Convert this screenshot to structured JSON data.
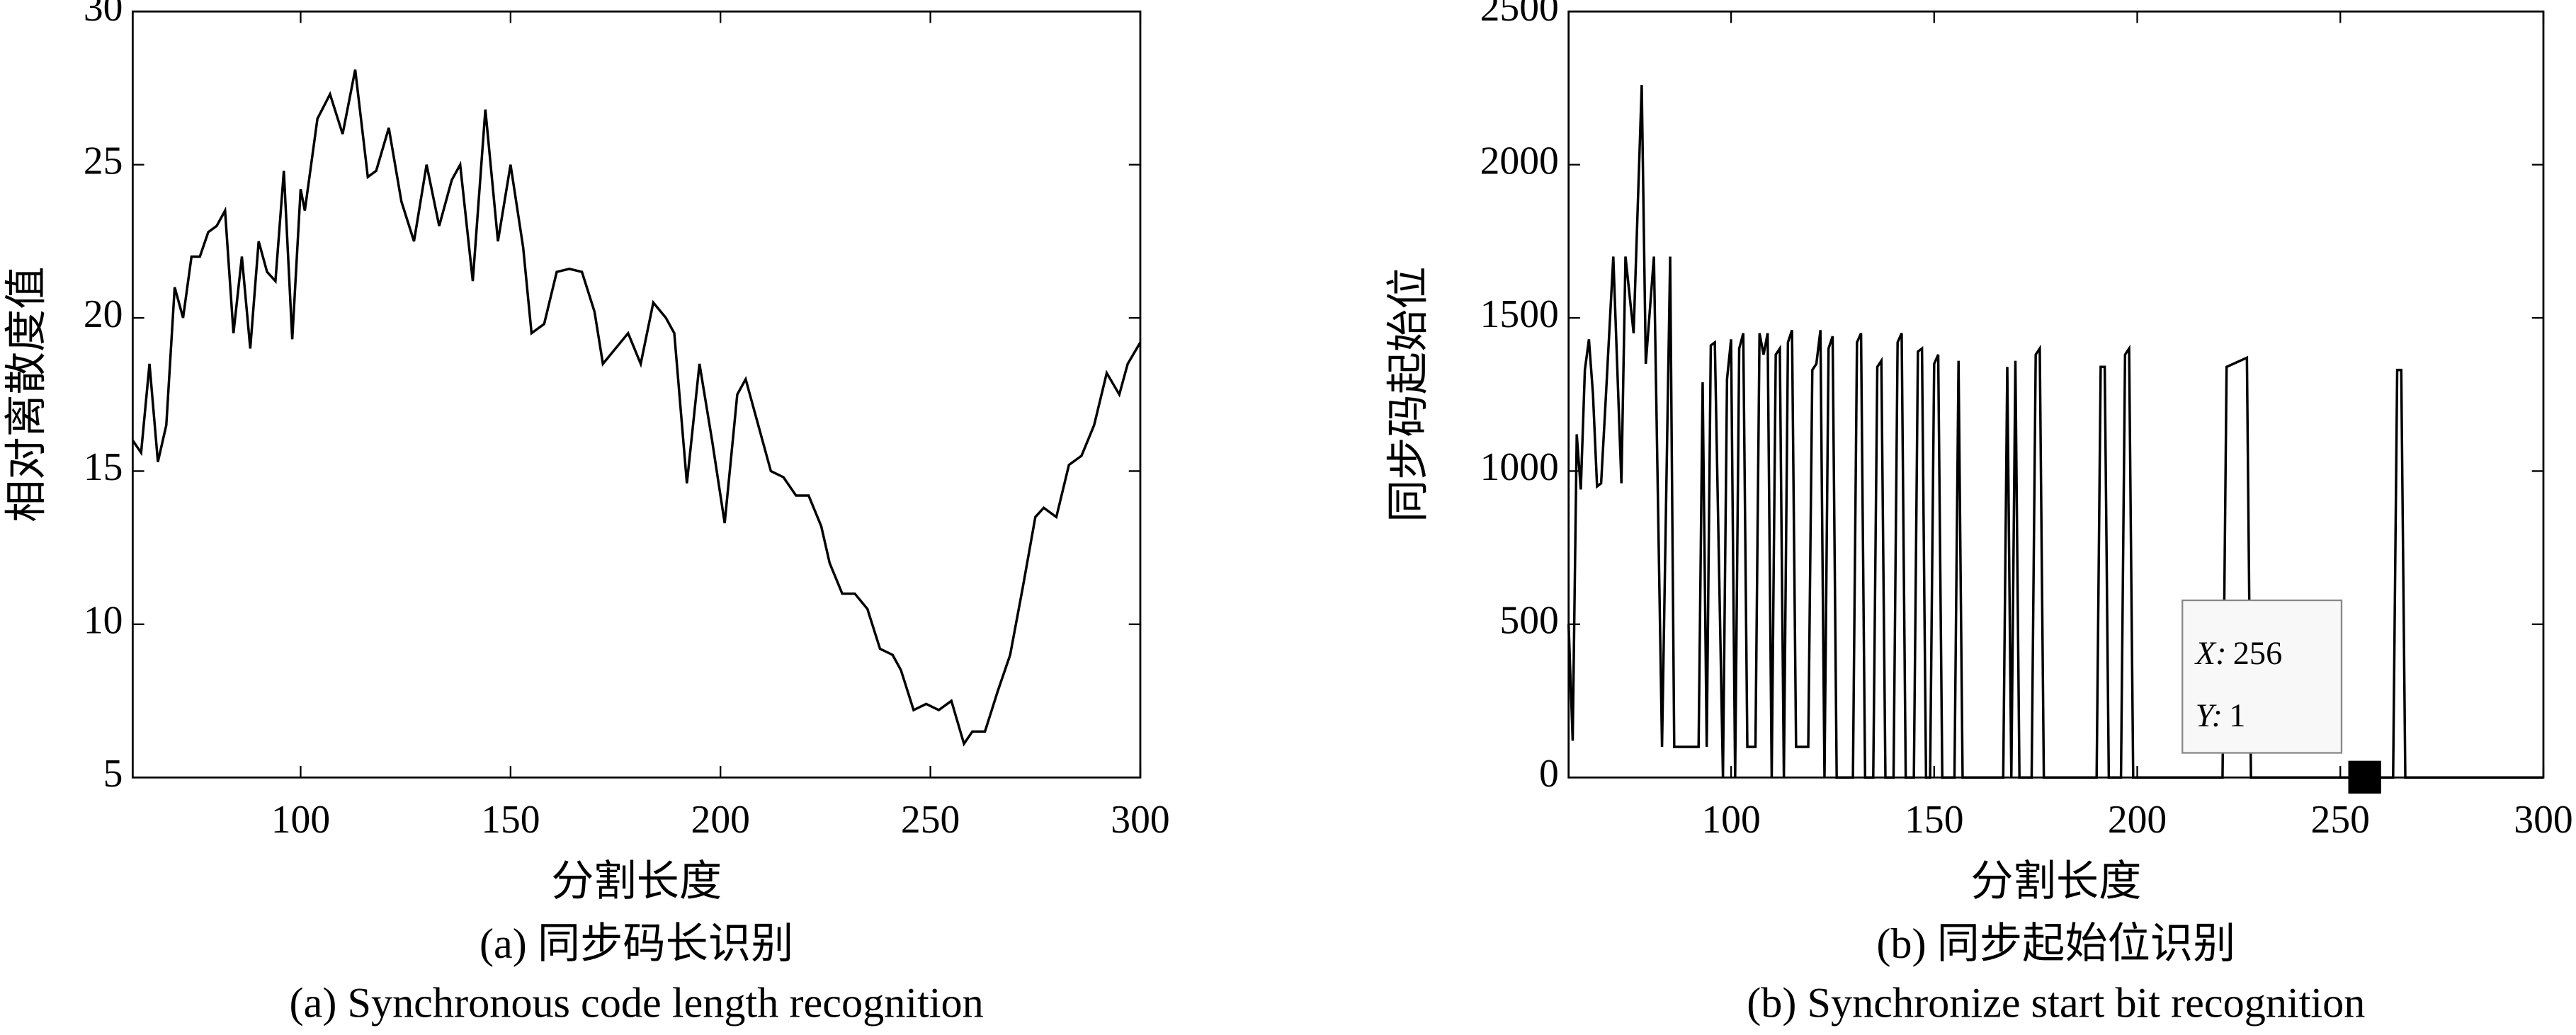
{
  "chart_data": [
    {
      "type": "line",
      "ylabel": "相对离散度值",
      "xlabel": "分割长度",
      "caption_cn": "(a) 同步码长识别",
      "caption_en": "(a) Synchronous code length recognition",
      "xlim": [
        60,
        300
      ],
      "ylim": [
        5,
        30
      ],
      "xticks": [
        100,
        150,
        200,
        250,
        300
      ],
      "yticks": [
        5,
        10,
        15,
        20,
        25,
        30
      ],
      "series": [
        {
          "color": "#000000",
          "x": [
            60,
            62,
            64,
            66,
            68,
            70,
            72,
            74,
            76,
            78,
            80,
            82,
            84,
            86,
            88,
            90,
            92,
            94,
            96,
            98,
            100,
            101,
            104,
            107,
            110,
            113,
            116,
            118,
            121,
            124,
            127,
            130,
            133,
            136,
            138,
            141,
            144,
            147,
            150,
            153,
            155,
            158,
            161,
            164,
            167,
            170,
            172,
            175,
            178,
            181,
            184,
            187,
            189,
            192,
            195,
            198,
            201,
            204,
            206,
            209,
            212,
            215,
            218,
            221,
            224,
            226,
            229,
            232,
            235,
            238,
            241,
            243,
            246,
            249,
            252,
            255,
            258,
            260,
            263,
            266,
            269,
            272,
            275,
            277,
            280,
            283,
            286,
            289,
            292,
            295,
            297,
            300
          ],
          "values": [
            16,
            15.6,
            18.5,
            15.3,
            16.5,
            21,
            20,
            22,
            22,
            22.8,
            23,
            23.5,
            19.5,
            22,
            19,
            22.5,
            21.5,
            21.2,
            24.8,
            19.3,
            24.2,
            23.5,
            26.5,
            27.3,
            26,
            28.1,
            24.6,
            24.8,
            26.2,
            23.8,
            22.5,
            25,
            23,
            24.5,
            25,
            21.2,
            26.8,
            22.5,
            25,
            22.3,
            19.5,
            19.8,
            21.5,
            21.6,
            21.5,
            20.2,
            18.5,
            19,
            19.5,
            18.5,
            20.5,
            20,
            19.5,
            14.6,
            18.5,
            16,
            13.3,
            17.5,
            18,
            16.5,
            15,
            14.8,
            14.2,
            14.2,
            13.2,
            12,
            11,
            11,
            10.5,
            9.2,
            9,
            8.5,
            7.2,
            7.4,
            7.2,
            7.5,
            6.1,
            6.5,
            6.5,
            7.8,
            9,
            11.2,
            13.5,
            13.8,
            13.5,
            15.2,
            15.5,
            16.5,
            18.2,
            17.5,
            18.5,
            19.2
          ]
        }
      ]
    },
    {
      "type": "line",
      "ylabel": "同步码起始位",
      "xlabel": "分割长度",
      "caption_cn": "(b) 同步起始位识别",
      "caption_en": "(b) Synchronize start bit recognition",
      "xlim": [
        60,
        300
      ],
      "ylim": [
        0,
        2500
      ],
      "xticks": [
        100,
        150,
        200,
        250,
        300
      ],
      "yticks": [
        0,
        500,
        1000,
        1500,
        2000,
        2500
      ],
      "datatip": {
        "x_label": "X:",
        "x": 256,
        "y_label": "Y:",
        "y": 1
      },
      "series": [
        {
          "color": "#000000",
          "x": [
            60,
            61,
            62,
            63,
            64,
            65,
            66,
            67,
            68,
            69,
            71,
            73,
            74,
            76,
            78,
            79,
            81,
            83,
            85,
            86,
            92,
            93,
            94,
            95,
            96,
            98,
            99,
            100,
            101,
            102,
            103,
            104,
            106,
            107,
            108,
            109,
            110,
            111,
            112,
            113,
            114,
            115,
            116,
            119,
            120,
            121,
            122,
            123,
            124,
            125,
            126,
            130,
            131,
            132,
            133,
            135,
            136,
            137,
            138,
            140,
            141,
            142,
            143,
            145,
            146,
            147,
            148,
            149,
            150,
            151,
            152,
            155,
            156,
            157,
            158,
            167,
            168,
            169,
            170,
            171,
            174,
            175,
            176,
            177,
            190,
            191,
            192,
            193,
            196,
            197,
            198,
            199,
            221,
            222,
            227,
            228,
            263,
            264,
            265,
            266,
            300
          ],
          "values": [
            500,
            120,
            1120,
            940,
            1330,
            1430,
            1250,
            950,
            960,
            1200,
            1700,
            960,
            1700,
            1450,
            2260,
            1350,
            1700,
            100,
            1700,
            100,
            100,
            1290,
            100,
            1410,
            1420,
            0,
            1300,
            1430,
            0,
            1400,
            1450,
            100,
            100,
            1450,
            1380,
            1450,
            0,
            1380,
            1400,
            0,
            1420,
            1460,
            100,
            100,
            1330,
            1350,
            1460,
            0,
            1400,
            1440,
            0,
            0,
            1420,
            1450,
            0,
            0,
            1340,
            1360,
            0,
            0,
            1420,
            1450,
            0,
            0,
            1390,
            1400,
            0,
            0,
            1350,
            1380,
            0,
            0,
            1360,
            0,
            0,
            0,
            1340,
            0,
            1360,
            0,
            0,
            1380,
            1400,
            0,
            0,
            1340,
            1340,
            0,
            0,
            1380,
            1400,
            0,
            0,
            1340,
            1370,
            0,
            0,
            1330,
            1330,
            0,
            0
          ]
        }
      ]
    }
  ]
}
